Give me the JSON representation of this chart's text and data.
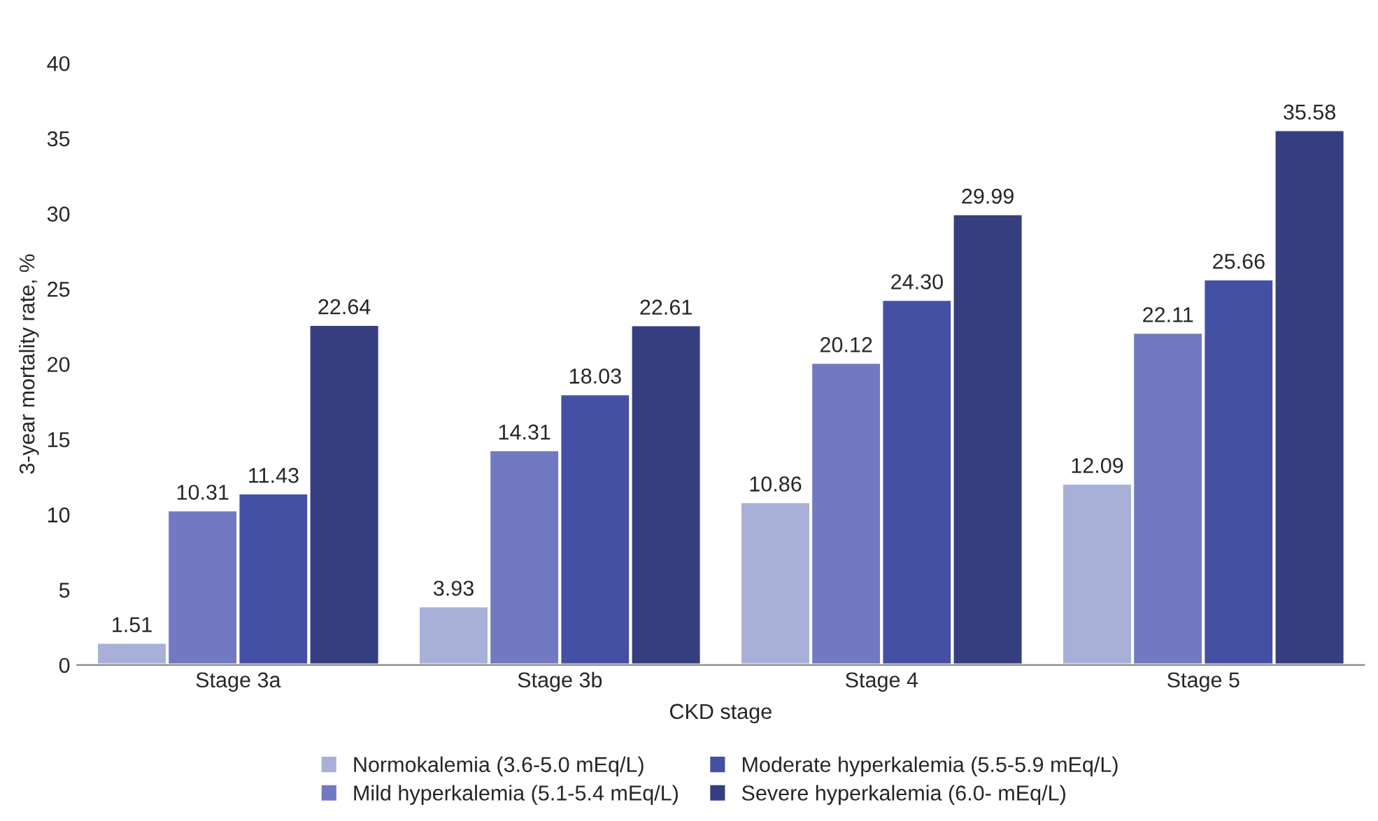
{
  "chart_data": {
    "type": "bar",
    "xlabel": "CKD stage",
    "ylabel": "3-year mortality rate, %",
    "categories": [
      "Stage 3a",
      "Stage 3b",
      "Stage 4",
      "Stage 5"
    ],
    "series": [
      {
        "name": "Normokalemia (3.6-5.0 mEq/L)",
        "color": "#a9b0d8",
        "values": [
          1.51,
          3.93,
          10.86,
          12.09
        ],
        "value_labels": [
          "1.51",
          "3.93",
          "10.86",
          "12.09"
        ]
      },
      {
        "name": "Mild hyperkalemia (5.1-5.4 mEq/L)",
        "color": "#7079c2",
        "values": [
          10.31,
          14.31,
          20.12,
          22.11
        ],
        "value_labels": [
          "10.31",
          "14.31",
          "20.12",
          "22.11"
        ]
      },
      {
        "name": "Moderate hyperkalemia (5.5-5.9 mEq/L)",
        "color": "#4350a4",
        "values": [
          11.43,
          18.03,
          24.3,
          25.66
        ],
        "value_labels": [
          "11.43",
          "18.03",
          "24.30",
          "25.66"
        ]
      },
      {
        "name": "Severe hyperkalemia (6.0- mEq/L)",
        "color": "#353f80",
        "values": [
          22.64,
          22.61,
          29.99,
          35.58
        ],
        "value_labels": [
          "22.64",
          "22.61",
          "29.99",
          "35.58"
        ]
      }
    ],
    "ylim": [
      0,
      40
    ],
    "yticks": [
      0,
      5,
      10,
      15,
      20,
      25,
      30,
      35,
      40
    ],
    "grid": false,
    "legend": "bottom"
  }
}
